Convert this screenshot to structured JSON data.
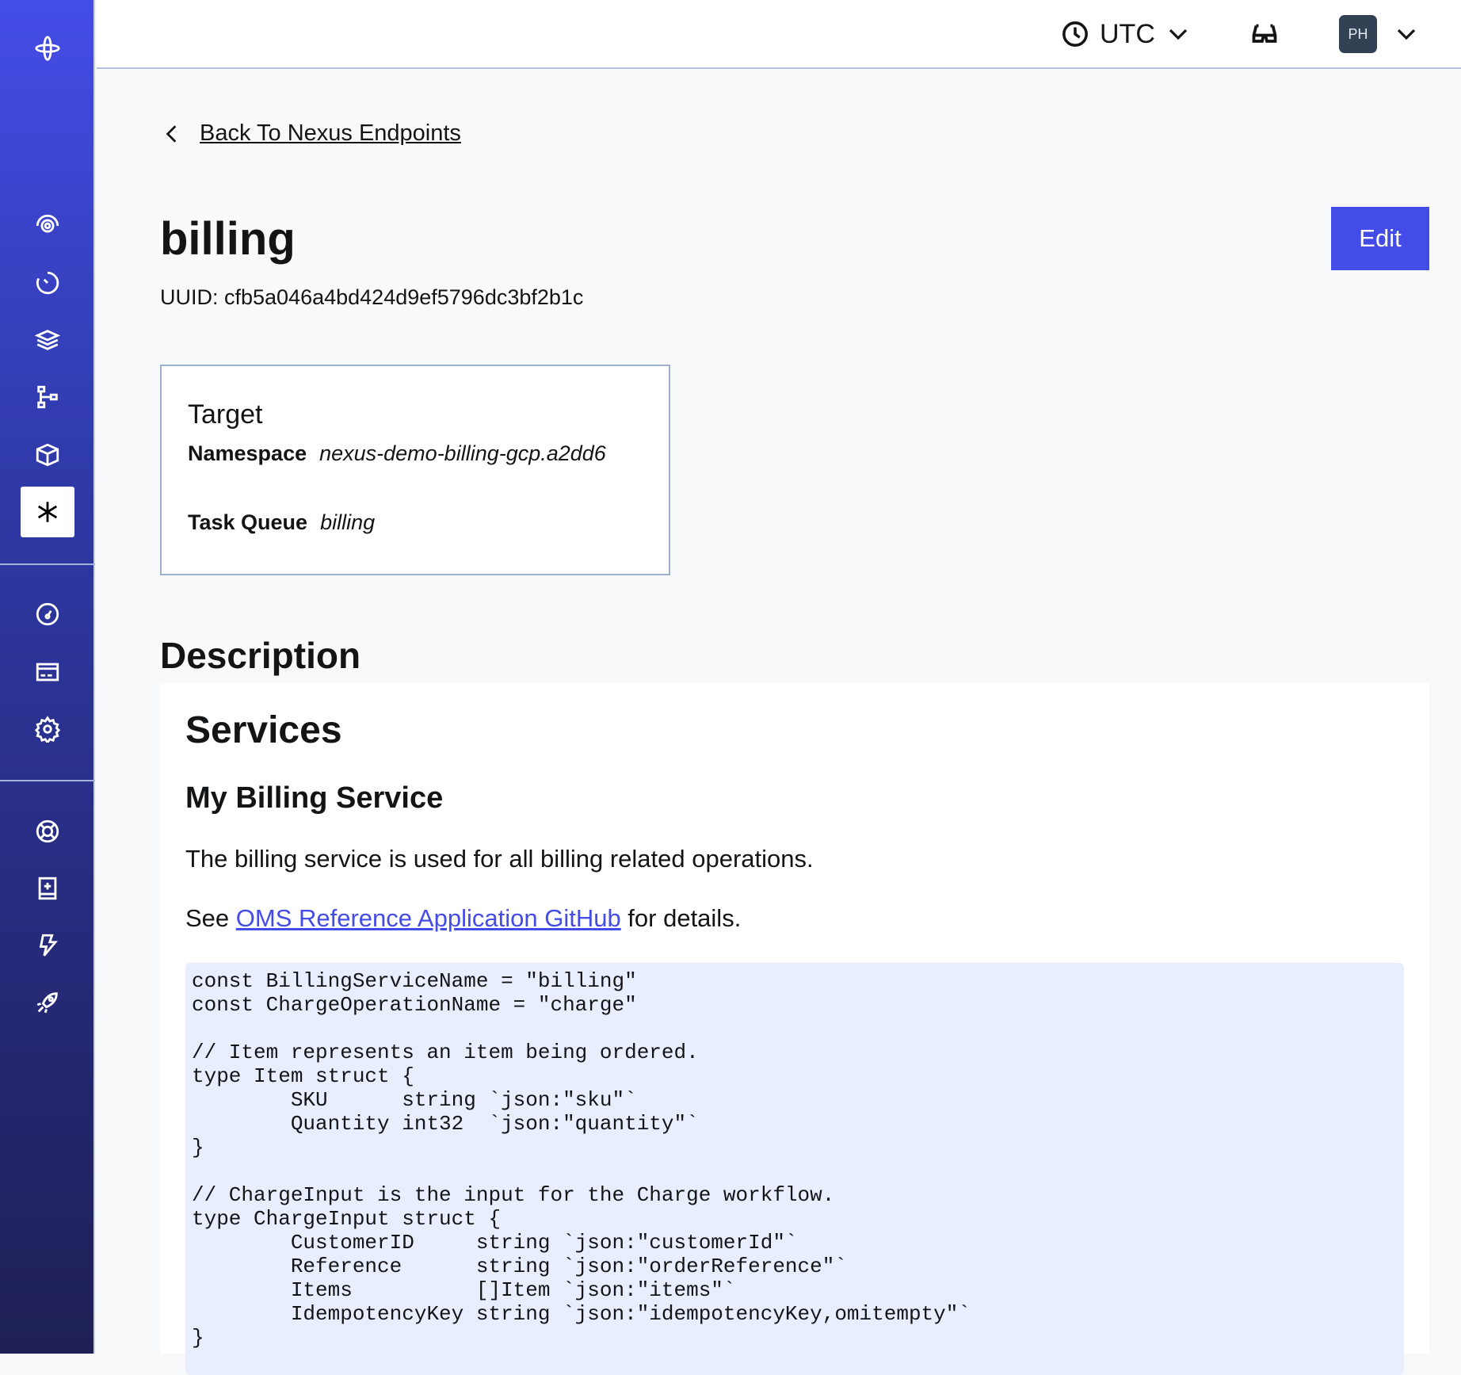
{
  "sidebar": {
    "items": [
      {
        "icon": "temporal-logo-icon"
      },
      {
        "icon": "workflows-icon"
      },
      {
        "icon": "schedules-icon"
      },
      {
        "icon": "batch-icon"
      },
      {
        "icon": "deployments-icon"
      },
      {
        "icon": "archive-icon"
      },
      {
        "icon": "nexus-icon",
        "active": true
      },
      {
        "icon": "usage-icon"
      },
      {
        "icon": "billing-icon"
      },
      {
        "icon": "settings-icon"
      },
      {
        "icon": "support-icon"
      },
      {
        "icon": "docs-icon"
      },
      {
        "icon": "feedback-icon"
      },
      {
        "icon": "get-started-icon"
      }
    ]
  },
  "header": {
    "timezone": "UTC",
    "avatar_initials": "PH"
  },
  "back_link": "Back To Nexus Endpoints",
  "title": "billing",
  "uuid": "UUID: cfb5a046a4bd424d9ef5796dc3bf2b1c",
  "edit_label": "Edit",
  "target": {
    "heading": "Target",
    "namespace_label": "Namespace",
    "namespace_value": "nexus-demo-billing-gcp.a2dd6",
    "task_queue_label": "Task Queue",
    "task_queue_value": "billing"
  },
  "description": {
    "heading": "Description",
    "h1": "Services",
    "h2": "My Billing Service",
    "p1": "The billing service is used for all billing related operations.",
    "p2_before": "See ",
    "p2_link": "OMS Reference Application GitHub",
    "p2_after": " for details.",
    "code": "const BillingServiceName = \"billing\"\nconst ChargeOperationName = \"charge\"\n\n// Item represents an item being ordered.\ntype Item struct {\n        SKU      string `json:\"sku\"`\n        Quantity int32  `json:\"quantity\"`\n}\n\n// ChargeInput is the input for the Charge workflow.\ntype ChargeInput struct {\n        CustomerID     string `json:\"customerId\"`\n        Reference      string `json:\"orderReference\"`\n        Items          []Item `json:\"items\"`\n        IdempotencyKey string `json:\"idempotencyKey,omitempty\"`\n}"
  },
  "colors": {
    "accent": "#444ce7",
    "avatar": "#334155",
    "code_bg": "#e8eefe"
  }
}
